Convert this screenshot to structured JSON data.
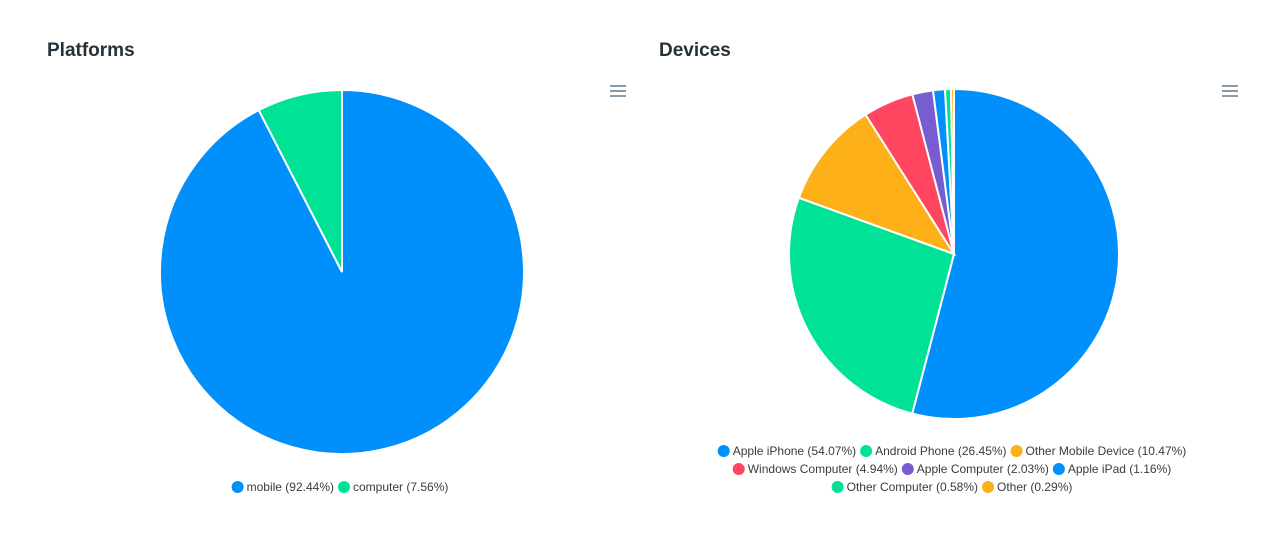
{
  "chart_data": [
    {
      "type": "pie",
      "title": "Platforms",
      "categories": [
        "mobile (92.44%)",
        "computer (7.56%)"
      ],
      "values": [
        92.44,
        7.56
      ],
      "colors": [
        "#008ffb",
        "#00e396"
      ]
    },
    {
      "type": "pie",
      "title": "Devices",
      "categories": [
        "Apple iPhone (54.07%)",
        "Android Phone (26.45%)",
        "Other Mobile Device (10.47%)",
        "Windows Computer (4.94%)",
        "Apple Computer (2.03%)",
        "Apple iPad (1.16%)",
        "Other Computer (0.58%)",
        "Other (0.29%)"
      ],
      "values": [
        54.07,
        26.45,
        10.47,
        4.94,
        2.03,
        1.16,
        0.58,
        0.29
      ],
      "colors": [
        "#008ffb",
        "#00e396",
        "#feb019",
        "#ff4560",
        "#775dd0",
        "#008ffb",
        "#00e396",
        "#feb019"
      ]
    }
  ]
}
